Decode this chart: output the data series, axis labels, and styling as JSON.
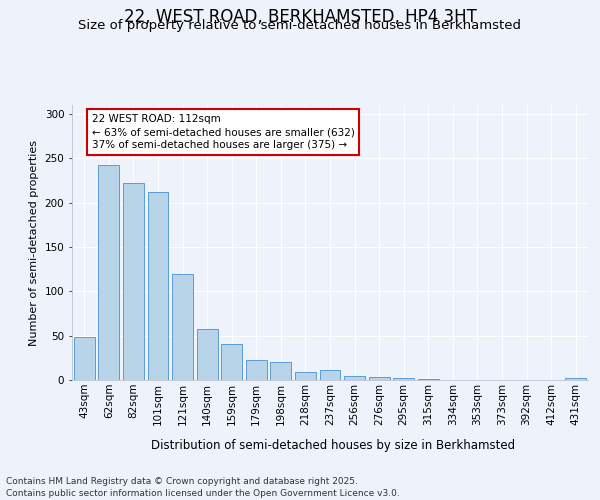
{
  "title": "22, WEST ROAD, BERKHAMSTED, HP4 3HT",
  "subtitle": "Size of property relative to semi-detached houses in Berkhamsted",
  "xlabel": "Distribution of semi-detached houses by size in Berkhamsted",
  "ylabel": "Number of semi-detached properties",
  "categories": [
    "43sqm",
    "62sqm",
    "82sqm",
    "101sqm",
    "121sqm",
    "140sqm",
    "159sqm",
    "179sqm",
    "198sqm",
    "218sqm",
    "237sqm",
    "256sqm",
    "276sqm",
    "295sqm",
    "315sqm",
    "334sqm",
    "353sqm",
    "373sqm",
    "392sqm",
    "412sqm",
    "431sqm"
  ],
  "values": [
    48,
    242,
    222,
    212,
    119,
    58,
    41,
    23,
    20,
    9,
    11,
    4,
    3,
    2,
    1,
    0,
    0,
    0,
    0,
    0,
    2
  ],
  "bar_color": "#b8d4e8",
  "bar_edge_color": "#5b9bd5",
  "annotation_title": "22 WEST ROAD: 112sqm",
  "annotation_line1": "← 63% of semi-detached houses are smaller (632)",
  "annotation_line2": "37% of semi-detached houses are larger (375) →",
  "annotation_box_color": "#ffffff",
  "annotation_box_edge": "#cc0000",
  "ylim_max": 310,
  "yticks": [
    0,
    50,
    100,
    150,
    200,
    250,
    300
  ],
  "background_color": "#eef2fa",
  "grid_color": "#ffffff",
  "footer_line1": "Contains HM Land Registry data © Crown copyright and database right 2025.",
  "footer_line2": "Contains public sector information licensed under the Open Government Licence v3.0.",
  "title_fontsize": 12,
  "subtitle_fontsize": 9.5,
  "ylabel_fontsize": 8,
  "xlabel_fontsize": 8.5,
  "tick_fontsize": 7.5,
  "ann_fontsize": 7.5,
  "footer_fontsize": 6.5
}
